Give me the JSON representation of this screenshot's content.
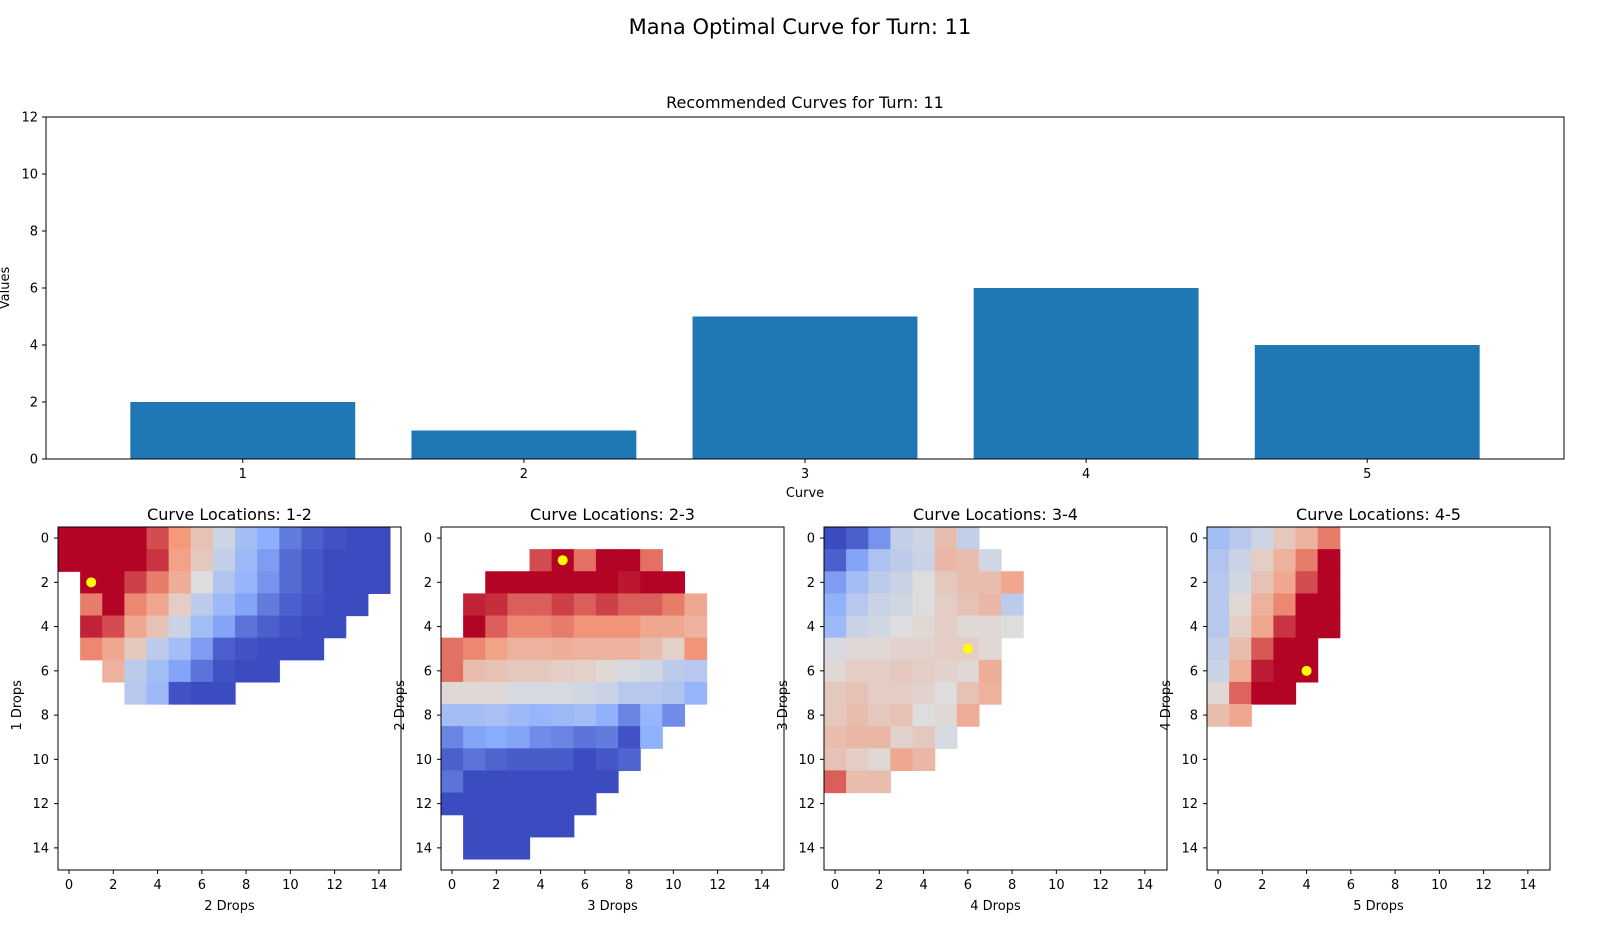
{
  "figure": {
    "suptitle": "Mana Optimal Curve for Turn: 11"
  },
  "chart_data": [
    {
      "type": "bar",
      "title": "Recommended Curves for Turn: 11",
      "xlabel": "Curve",
      "ylabel": "Values",
      "categories": [
        "1",
        "2",
        "3",
        "4",
        "5"
      ],
      "values": [
        2,
        1,
        5,
        6,
        4
      ],
      "ylim": [
        0,
        12
      ],
      "yticks": [
        0,
        2,
        4,
        6,
        8,
        10,
        12
      ],
      "bar_color": "#1f77b4",
      "grid": false
    },
    {
      "type": "heatmap",
      "title": "Curve Locations: 1-2",
      "xlabel": "2 Drops",
      "ylabel": "1 Drops",
      "ticks": [
        0,
        2,
        4,
        6,
        8,
        10,
        12,
        14
      ],
      "colormap": "coolwarm",
      "marker": {
        "x": 1,
        "y": 2,
        "color": "#ffff00"
      },
      "rows": [
        [
          1.0,
          1.0,
          1.0,
          1.0,
          0.88,
          0.75,
          0.6,
          0.45,
          0.32,
          0.25,
          0.12,
          0.05,
          0.02,
          0.0,
          0.0
        ],
        [
          1.0,
          1.0,
          1.0,
          1.0,
          0.92,
          0.72,
          0.58,
          0.42,
          0.3,
          0.2,
          0.08,
          0.03,
          0.0,
          0.0,
          0.0
        ],
        [
          null,
          1.0,
          1.0,
          0.9,
          0.8,
          0.68,
          0.5,
          0.36,
          0.28,
          0.18,
          0.08,
          0.03,
          0.0,
          0.0,
          0.0
        ],
        [
          null,
          0.8,
          1.0,
          0.78,
          0.7,
          0.56,
          0.4,
          0.3,
          0.22,
          0.12,
          0.05,
          0.02,
          0.0,
          0.0,
          null
        ],
        [
          null,
          0.95,
          0.88,
          0.7,
          0.6,
          0.44,
          0.32,
          0.22,
          0.1,
          0.05,
          0.02,
          0.0,
          0.0,
          null,
          null
        ],
        [
          null,
          0.78,
          0.7,
          0.58,
          0.4,
          0.32,
          0.2,
          0.05,
          0.02,
          0.0,
          0.0,
          0.0,
          null,
          null,
          null
        ],
        [
          null,
          null,
          0.66,
          0.4,
          0.32,
          0.22,
          0.1,
          0.02,
          0.0,
          0.0,
          null,
          null,
          null,
          null,
          null
        ],
        [
          null,
          null,
          null,
          0.38,
          0.3,
          0.02,
          0.0,
          0.0,
          null,
          null,
          null,
          null,
          null,
          null,
          null
        ],
        [
          null,
          null,
          null,
          null,
          null,
          null,
          null,
          null,
          null,
          null,
          null,
          null,
          null,
          null,
          null
        ],
        [
          null,
          null,
          null,
          null,
          null,
          null,
          null,
          null,
          null,
          null,
          null,
          null,
          null,
          null,
          null
        ],
        [
          null,
          null,
          null,
          null,
          null,
          null,
          null,
          null,
          null,
          null,
          null,
          null,
          null,
          null,
          null
        ],
        [
          null,
          null,
          null,
          null,
          null,
          null,
          null,
          null,
          null,
          null,
          null,
          null,
          null,
          null,
          null
        ],
        [
          null,
          null,
          null,
          null,
          null,
          null,
          null,
          null,
          null,
          null,
          null,
          null,
          null,
          null,
          null
        ],
        [
          null,
          null,
          null,
          null,
          null,
          null,
          null,
          null,
          null,
          null,
          null,
          null,
          null,
          null,
          null
        ],
        [
          null,
          null,
          null,
          null,
          null,
          null,
          null,
          null,
          null,
          null,
          null,
          null,
          null,
          null,
          null
        ]
      ]
    },
    {
      "type": "heatmap",
      "title": "Curve Locations: 2-3",
      "xlabel": "3 Drops",
      "ylabel": "2 Drops",
      "ticks": [
        0,
        2,
        4,
        6,
        8,
        10,
        12,
        14
      ],
      "colormap": "coolwarm",
      "marker": {
        "x": 5,
        "y": 1,
        "color": "#ffff00"
      },
      "rows": [
        [
          null,
          null,
          null,
          null,
          null,
          null,
          null,
          null,
          null,
          null,
          null,
          null,
          null,
          null,
          null
        ],
        [
          null,
          null,
          null,
          null,
          0.88,
          1.0,
          0.82,
          1.0,
          1.0,
          0.82,
          null,
          null,
          null,
          null,
          null
        ],
        [
          null,
          null,
          1.0,
          1.0,
          1.0,
          1.0,
          1.0,
          1.0,
          0.97,
          1.0,
          1.0,
          null,
          null,
          null,
          null
        ],
        [
          null,
          0.95,
          0.93,
          0.85,
          0.85,
          0.9,
          0.85,
          0.9,
          0.85,
          0.85,
          0.8,
          0.7,
          null,
          null,
          null
        ],
        [
          null,
          1.0,
          0.85,
          0.78,
          0.78,
          0.8,
          0.76,
          0.76,
          0.76,
          0.7,
          0.7,
          0.66,
          null,
          null,
          null
        ],
        [
          0.82,
          0.78,
          0.72,
          0.66,
          0.66,
          0.68,
          0.66,
          0.66,
          0.66,
          0.62,
          0.55,
          0.76,
          null,
          null,
          null
        ],
        [
          0.82,
          0.62,
          0.6,
          0.58,
          0.58,
          0.56,
          0.55,
          0.52,
          0.48,
          0.46,
          0.4,
          0.38,
          null,
          null,
          null
        ],
        [
          0.52,
          0.52,
          0.52,
          0.48,
          0.48,
          0.48,
          0.46,
          0.44,
          0.38,
          0.38,
          0.36,
          0.28,
          null,
          null,
          null
        ],
        [
          0.32,
          0.32,
          0.34,
          0.3,
          0.28,
          0.3,
          0.32,
          0.26,
          0.14,
          0.28,
          0.16,
          null,
          null,
          null,
          null
        ],
        [
          0.14,
          0.22,
          0.24,
          0.22,
          0.16,
          0.14,
          0.1,
          0.12,
          0.02,
          0.26,
          null,
          null,
          null,
          null,
          null
        ],
        [
          0.05,
          0.1,
          0.06,
          0.04,
          0.04,
          0.04,
          0.0,
          0.03,
          0.06,
          null,
          null,
          null,
          null,
          null,
          null
        ],
        [
          0.1,
          0.0,
          0.0,
          0.0,
          0.0,
          0.0,
          0.0,
          0.0,
          null,
          null,
          null,
          null,
          null,
          null,
          null
        ],
        [
          0.0,
          0.0,
          0.0,
          0.0,
          0.0,
          0.0,
          0.0,
          null,
          null,
          null,
          null,
          null,
          null,
          null,
          null
        ],
        [
          null,
          0.0,
          0.0,
          0.0,
          0.0,
          0.0,
          null,
          null,
          null,
          null,
          null,
          null,
          null,
          null,
          null
        ],
        [
          null,
          0.0,
          0.0,
          0.0,
          null,
          null,
          null,
          null,
          null,
          null,
          null,
          null,
          null,
          null,
          null
        ]
      ]
    },
    {
      "type": "heatmap",
      "title": "Curve Locations: 3-4",
      "xlabel": "4 Drops",
      "ylabel": "3 Drops",
      "ticks": [
        0,
        2,
        4,
        6,
        8,
        10,
        12,
        14
      ],
      "colormap": "coolwarm",
      "marker": {
        "x": 6,
        "y": 5,
        "color": "#ffff00"
      },
      "rows": [
        [
          0.0,
          0.05,
          0.18,
          0.42,
          0.45,
          0.62,
          0.42,
          null,
          null,
          null,
          null,
          null,
          null,
          null,
          null
        ],
        [
          0.05,
          0.22,
          0.35,
          0.4,
          0.44,
          0.64,
          0.62,
          0.46,
          null,
          null,
          null,
          null,
          null,
          null,
          null
        ],
        [
          0.2,
          0.32,
          0.4,
          0.44,
          0.5,
          0.58,
          0.62,
          0.62,
          0.7,
          null,
          null,
          null,
          null,
          null,
          null
        ],
        [
          0.26,
          0.38,
          0.44,
          0.46,
          0.5,
          0.56,
          0.6,
          0.64,
          0.4,
          null,
          null,
          null,
          null,
          null,
          null
        ],
        [
          0.3,
          0.44,
          0.46,
          0.5,
          0.52,
          0.56,
          0.52,
          0.52,
          0.5,
          null,
          null,
          null,
          null,
          null,
          null
        ],
        [
          0.48,
          0.52,
          0.52,
          0.54,
          0.54,
          0.56,
          0.56,
          0.52,
          null,
          null,
          null,
          null,
          null,
          null,
          null
        ],
        [
          0.52,
          0.56,
          0.56,
          0.58,
          0.56,
          0.54,
          0.52,
          0.68,
          null,
          null,
          null,
          null,
          null,
          null,
          null
        ],
        [
          0.58,
          0.6,
          0.56,
          0.56,
          0.54,
          0.5,
          0.6,
          0.66,
          null,
          null,
          null,
          null,
          null,
          null,
          null
        ],
        [
          0.58,
          0.62,
          0.58,
          0.6,
          0.5,
          0.52,
          0.68,
          null,
          null,
          null,
          null,
          null,
          null,
          null,
          null
        ],
        [
          0.62,
          0.64,
          0.64,
          0.54,
          0.58,
          0.48,
          null,
          null,
          null,
          null,
          null,
          null,
          null,
          null,
          null
        ],
        [
          0.6,
          0.56,
          0.52,
          0.7,
          0.64,
          null,
          null,
          null,
          null,
          null,
          null,
          null,
          null,
          null,
          null
        ],
        [
          0.85,
          0.62,
          0.62,
          null,
          null,
          null,
          null,
          null,
          null,
          null,
          null,
          null,
          null,
          null,
          null
        ],
        [
          null,
          null,
          null,
          null,
          null,
          null,
          null,
          null,
          null,
          null,
          null,
          null,
          null,
          null,
          null
        ],
        [
          null,
          null,
          null,
          null,
          null,
          null,
          null,
          null,
          null,
          null,
          null,
          null,
          null,
          null,
          null
        ],
        [
          null,
          null,
          null,
          null,
          null,
          null,
          null,
          null,
          null,
          null,
          null,
          null,
          null,
          null,
          null
        ]
      ]
    },
    {
      "type": "heatmap",
      "title": "Curve Locations: 4-5",
      "xlabel": "5 Drops",
      "ylabel": "4 Drops",
      "ticks": [
        0,
        2,
        4,
        6,
        8,
        10,
        12,
        14
      ],
      "colormap": "coolwarm",
      "marker": {
        "x": 4,
        "y": 6,
        "color": "#ffff00"
      },
      "rows": [
        [
          0.32,
          0.38,
          0.45,
          0.58,
          0.66,
          0.8,
          null,
          null,
          null,
          null,
          null,
          null,
          null,
          null,
          null
        ],
        [
          0.36,
          0.44,
          0.56,
          0.66,
          0.8,
          1.0,
          null,
          null,
          null,
          null,
          null,
          null,
          null,
          null,
          null
        ],
        [
          0.38,
          0.46,
          0.6,
          0.7,
          0.88,
          1.0,
          null,
          null,
          null,
          null,
          null,
          null,
          null,
          null,
          null
        ],
        [
          0.38,
          0.52,
          0.66,
          0.78,
          1.0,
          1.0,
          null,
          null,
          null,
          null,
          null,
          null,
          null,
          null,
          null
        ],
        [
          0.38,
          0.56,
          0.7,
          0.92,
          1.0,
          1.0,
          null,
          null,
          null,
          null,
          null,
          null,
          null,
          null,
          null
        ],
        [
          0.42,
          0.62,
          0.86,
          1.0,
          1.0,
          null,
          null,
          null,
          null,
          null,
          null,
          null,
          null,
          null,
          null
        ],
        [
          0.44,
          0.68,
          0.96,
          1.0,
          1.0,
          null,
          null,
          null,
          null,
          null,
          null,
          null,
          null,
          null,
          null
        ],
        [
          0.52,
          0.84,
          1.0,
          1.0,
          null,
          null,
          null,
          null,
          null,
          null,
          null,
          null,
          null,
          null,
          null
        ],
        [
          0.62,
          0.7,
          null,
          null,
          null,
          null,
          null,
          null,
          null,
          null,
          null,
          null,
          null,
          null,
          null
        ],
        [
          null,
          null,
          null,
          null,
          null,
          null,
          null,
          null,
          null,
          null,
          null,
          null,
          null,
          null,
          null
        ],
        [
          null,
          null,
          null,
          null,
          null,
          null,
          null,
          null,
          null,
          null,
          null,
          null,
          null,
          null,
          null
        ],
        [
          null,
          null,
          null,
          null,
          null,
          null,
          null,
          null,
          null,
          null,
          null,
          null,
          null,
          null,
          null
        ],
        [
          null,
          null,
          null,
          null,
          null,
          null,
          null,
          null,
          null,
          null,
          null,
          null,
          null,
          null,
          null
        ],
        [
          null,
          null,
          null,
          null,
          null,
          null,
          null,
          null,
          null,
          null,
          null,
          null,
          null,
          null,
          null
        ],
        [
          null,
          null,
          null,
          null,
          null,
          null,
          null,
          null,
          null,
          null,
          null,
          null,
          null,
          null,
          null
        ]
      ]
    }
  ]
}
